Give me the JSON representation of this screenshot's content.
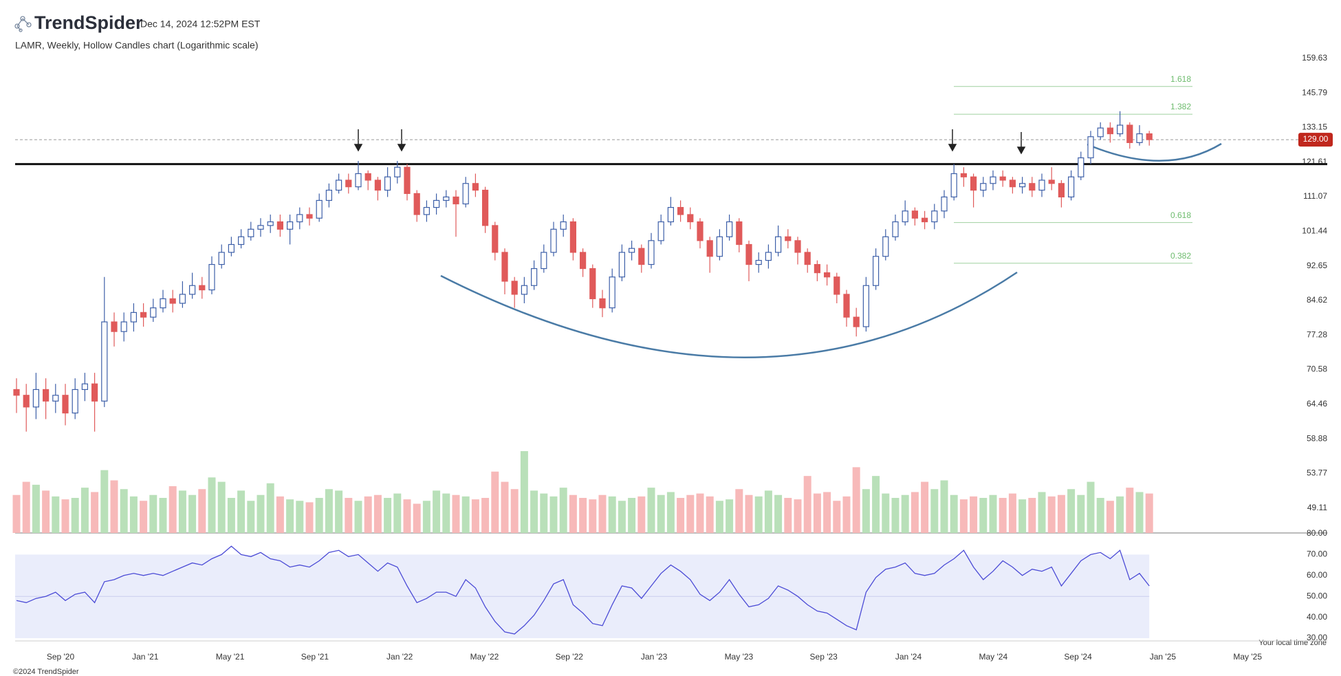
{
  "header": {
    "brand": "TrendSpider",
    "timestamp": "Dec 14, 2024 12:52PM EST"
  },
  "footer": {
    "copyright": "©2024 TrendSpider",
    "timezone_note": "Your local time zone"
  },
  "chart_data": {
    "type": "candlestick",
    "title": "LAMR, Weekly, Hollow Candles chart (Logarithmic scale)",
    "log_scale": true,
    "ylim": [
      46,
      170
    ],
    "yticks": [
      159.63,
      145.79,
      133.15,
      121.61,
      111.07,
      101.44,
      92.65,
      84.62,
      77.28,
      70.58,
      64.46,
      58.88,
      53.77,
      49.11
    ],
    "xtick_labels": [
      "Sep '20",
      "Jan '21",
      "May '21",
      "Sep '21",
      "Jan '22",
      "May '22",
      "Sep '22",
      "Jan '23",
      "May '23",
      "Sep '23",
      "Jan '24",
      "May '24",
      "Sep '24",
      "Jan '25",
      "May '25"
    ],
    "up_color": "#3d5fa8",
    "down_color": "#e05a5a",
    "volume_up_color": "#b9e0b9",
    "volume_down_color": "#f7b9b9",
    "open": [
      67,
      66,
      64,
      67,
      65,
      66,
      63,
      67,
      68,
      65,
      80,
      78,
      80,
      82,
      81,
      83,
      85,
      84,
      86,
      88,
      87,
      93,
      96,
      98,
      100,
      102,
      103,
      104,
      102,
      104,
      106,
      105,
      110,
      113,
      116,
      114,
      118,
      116,
      113,
      117,
      120,
      112,
      106,
      108,
      110,
      111,
      109,
      115,
      113,
      103,
      96,
      89,
      86,
      88,
      92,
      96,
      102,
      104,
      96,
      92,
      85,
      83,
      90,
      96,
      97,
      93,
      99,
      104,
      108,
      106,
      104,
      99,
      95,
      100,
      104,
      98,
      93,
      94,
      96,
      100,
      99,
      96,
      93,
      91,
      90,
      86,
      81,
      79,
      88,
      95,
      100,
      104,
      107,
      105,
      104,
      107,
      111,
      118,
      117,
      113,
      115,
      117,
      116,
      114,
      115,
      113,
      116,
      115,
      111,
      117,
      123,
      130,
      133,
      131,
      134,
      128,
      131
    ],
    "high": [
      69,
      68,
      70,
      69,
      68,
      68,
      69,
      70,
      70,
      90,
      82,
      82,
      84,
      84,
      85,
      87,
      87,
      89,
      91,
      90,
      95,
      98,
      100,
      102,
      104,
      105,
      106,
      106,
      106,
      108,
      108,
      112,
      115,
      118,
      118,
      122,
      119,
      117,
      120,
      122,
      121,
      113,
      110,
      112,
      113,
      113,
      117,
      118,
      114,
      104,
      97,
      90,
      90,
      94,
      98,
      104,
      106,
      105,
      97,
      93,
      87,
      92,
      98,
      99,
      98,
      101,
      106,
      111,
      110,
      108,
      105,
      100,
      102,
      106,
      105,
      99,
      96,
      98,
      103,
      102,
      100,
      97,
      94,
      93,
      91,
      87,
      83,
      90,
      97,
      102,
      106,
      110,
      108,
      107,
      109,
      113,
      121,
      120,
      118,
      117,
      119,
      119,
      117,
      117,
      117,
      118,
      120,
      116,
      119,
      125,
      132,
      135,
      135,
      139,
      135,
      134,
      132
    ],
    "low": [
      63,
      60,
      62,
      62,
      63,
      61,
      62,
      65,
      60,
      64,
      75,
      76,
      78,
      79,
      80,
      82,
      82,
      83,
      85,
      85,
      86,
      92,
      95,
      97,
      99,
      100,
      101,
      100,
      98,
      102,
      103,
      104,
      108,
      112,
      112,
      113,
      113,
      110,
      111,
      115,
      110,
      104,
      104,
      106,
      108,
      100,
      108,
      111,
      101,
      94,
      86,
      83,
      84,
      87,
      91,
      95,
      100,
      94,
      90,
      83,
      81,
      82,
      89,
      94,
      91,
      92,
      98,
      103,
      104,
      102,
      97,
      91,
      94,
      99,
      96,
      89,
      91,
      92,
      95,
      97,
      93,
      91,
      89,
      88,
      84,
      79,
      77,
      78,
      87,
      94,
      99,
      103,
      103,
      102,
      102,
      105,
      110,
      114,
      108,
      111,
      113,
      114,
      112,
      112,
      111,
      111,
      113,
      108,
      110,
      116,
      121,
      129,
      128,
      130,
      126,
      127,
      127
    ],
    "close": [
      66,
      64,
      67,
      65,
      66,
      63,
      67,
      68,
      65,
      80,
      78,
      80,
      82,
      81,
      83,
      85,
      84,
      86,
      88,
      87,
      93,
      96,
      98,
      100,
      102,
      103,
      104,
      102,
      104,
      106,
      105,
      110,
      113,
      116,
      114,
      118,
      116,
      113,
      117,
      120,
      112,
      106,
      108,
      110,
      111,
      109,
      115,
      113,
      103,
      96,
      89,
      86,
      88,
      92,
      96,
      102,
      104,
      96,
      92,
      85,
      83,
      90,
      96,
      97,
      93,
      99,
      104,
      108,
      106,
      104,
      99,
      95,
      100,
      104,
      98,
      93,
      94,
      96,
      100,
      99,
      96,
      93,
      91,
      90,
      86,
      81,
      79,
      88,
      95,
      100,
      104,
      107,
      105,
      104,
      107,
      111,
      118,
      117,
      113,
      115,
      117,
      116,
      114,
      115,
      113,
      116,
      115,
      111,
      117,
      123,
      130,
      133,
      131,
      134,
      128,
      131,
      129
    ],
    "volume": [
      2.6,
      3.5,
      3.3,
      2.9,
      2.5,
      2.3,
      2.4,
      3.1,
      2.8,
      4.3,
      3.6,
      3.0,
      2.5,
      2.2,
      2.6,
      2.4,
      3.2,
      2.9,
      2.6,
      3.0,
      3.8,
      3.5,
      2.4,
      2.9,
      2.2,
      2.6,
      3.4,
      2.5,
      2.3,
      2.2,
      2.1,
      2.4,
      3.0,
      2.9,
      2.4,
      2.2,
      2.5,
      2.6,
      2.4,
      2.7,
      2.3,
      2.0,
      2.2,
      2.9,
      2.7,
      2.6,
      2.5,
      2.3,
      2.4,
      4.2,
      3.5,
      3.0,
      5.6,
      2.9,
      2.7,
      2.5,
      3.1,
      2.6,
      2.4,
      2.3,
      2.6,
      2.5,
      2.2,
      2.4,
      2.5,
      3.1,
      2.6,
      2.8,
      2.4,
      2.6,
      2.7,
      2.5,
      2.2,
      2.3,
      3.0,
      2.6,
      2.5,
      2.9,
      2.6,
      2.4,
      2.3,
      3.9,
      2.7,
      2.8,
      2.2,
      2.5,
      4.5,
      3.0,
      3.9,
      2.7,
      2.4,
      2.6,
      2.8,
      3.5,
      3.0,
      3.6,
      2.6,
      2.3,
      2.5,
      2.4,
      2.6,
      2.4,
      2.7,
      2.3,
      2.4,
      2.8,
      2.5,
      2.6,
      3.0,
      2.6,
      3.5,
      2.4,
      2.2,
      2.5,
      3.1,
      2.8,
      2.7
    ],
    "rsi": [
      48,
      47,
      49,
      50,
      52,
      48,
      51,
      52,
      47,
      57,
      58,
      60,
      61,
      60,
      61,
      60,
      62,
      64,
      66,
      65,
      68,
      70,
      74,
      70,
      69,
      71,
      68,
      67,
      64,
      65,
      64,
      67,
      71,
      72,
      69,
      70,
      66,
      62,
      66,
      64,
      55,
      47,
      49,
      52,
      52,
      50,
      58,
      54,
      45,
      38,
      33,
      32,
      36,
      41,
      48,
      56,
      58,
      46,
      42,
      37,
      36,
      46,
      55,
      54,
      49,
      55,
      61,
      65,
      62,
      58,
      51,
      48,
      52,
      58,
      51,
      45,
      46,
      49,
      55,
      53,
      50,
      46,
      43,
      42,
      39,
      36,
      34,
      52,
      59,
      63,
      64,
      66,
      61,
      60,
      61,
      65,
      68,
      72,
      64,
      58,
      62,
      67,
      64,
      60,
      63,
      62,
      64,
      55,
      61,
      67,
      70,
      71,
      68,
      72,
      58,
      61,
      55
    ],
    "rsi_color": "#4b4bd6",
    "rsi_ylim": [
      30,
      80
    ],
    "rsi_yticks": [
      {
        "value": 80,
        "label": "80.00"
      },
      {
        "value": 70,
        "label": "70.00"
      },
      {
        "value": 60,
        "label": "60.00"
      },
      {
        "value": 50,
        "label": "50.00"
      },
      {
        "value": 40,
        "label": "40.00"
      },
      {
        "value": 30,
        "label": "30.00"
      }
    ],
    "rsi_levels": [
      30,
      50,
      70
    ],
    "last_price": {
      "value": 129,
      "label": "129.00"
    },
    "resistance": 121,
    "fib_levels": [
      {
        "ratio": 1.618,
        "price": 148.3
      },
      {
        "ratio": 1.382,
        "price": 137.9
      },
      {
        "ratio": 0.618,
        "price": 103.8
      },
      {
        "ratio": 0.382,
        "price": 93.3
      }
    ]
  }
}
